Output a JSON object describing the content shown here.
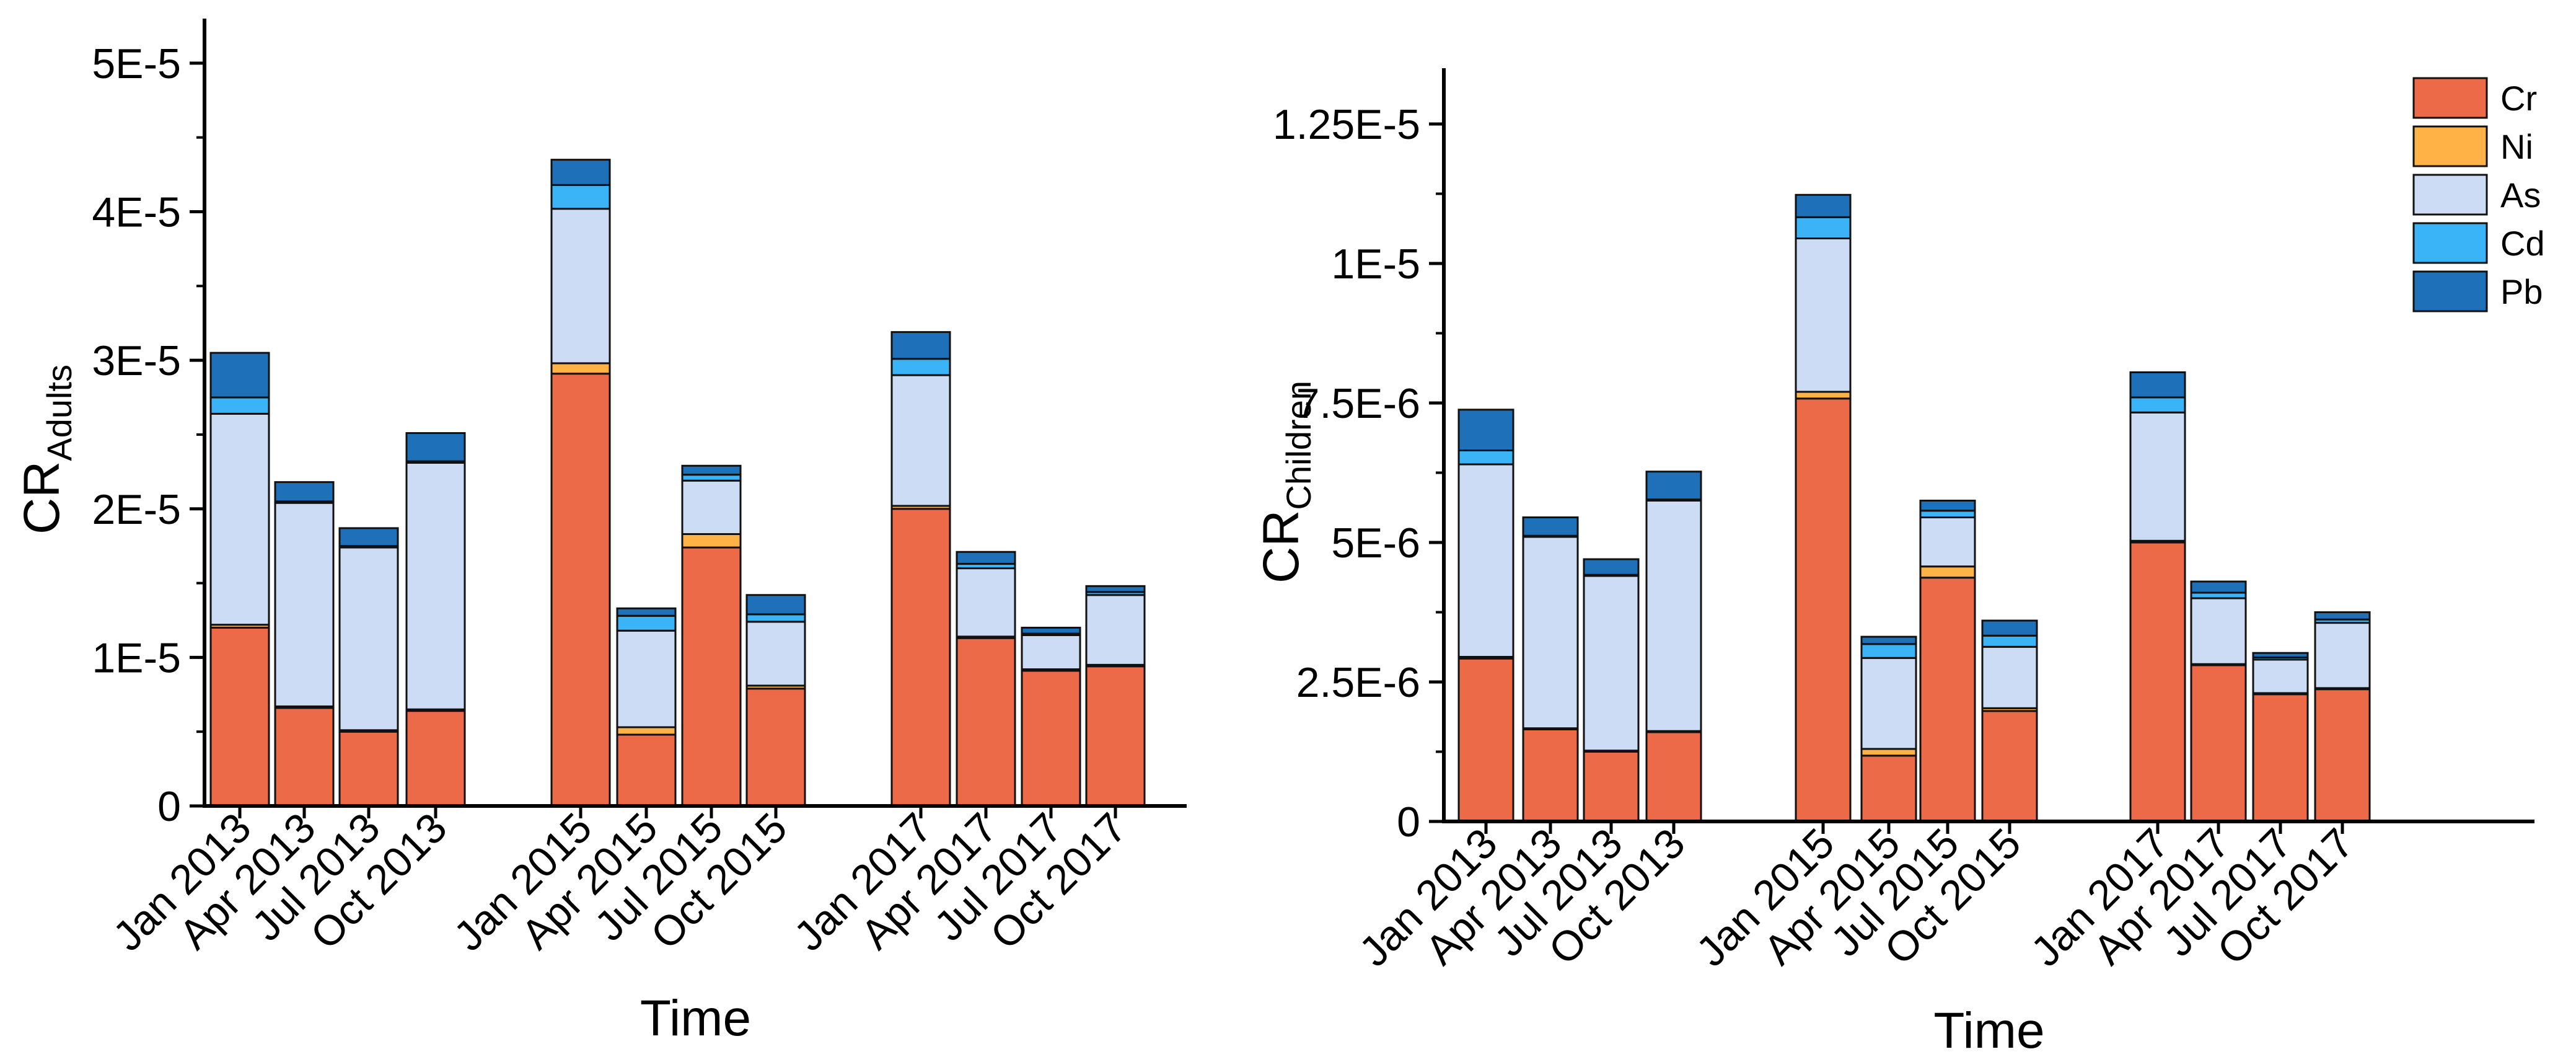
{
  "colors": {
    "Cr": "#ED6A48",
    "Ni": "#FFB347",
    "As": "#CCDCF4",
    "Cd": "#3BB3F7",
    "Pb": "#1E70B8"
  },
  "legend": [
    "Cr",
    "Ni",
    "As",
    "Cd",
    "Pb"
  ],
  "chart_data": [
    {
      "type": "bar",
      "stacked": true,
      "title": "",
      "xlabel": "Time",
      "ylabel": {
        "main": "CR",
        "sub": "Adults"
      },
      "ylim": [
        0,
        5.3e-05
      ],
      "yticks": [
        0,
        1e-05,
        2e-05,
        3e-05,
        4e-05,
        5e-05
      ],
      "ytick_labels": [
        "0",
        "1E-5",
        "2E-5",
        "3E-5",
        "4E-5",
        "5E-5"
      ],
      "categories": [
        "Jan 2013",
        "Apr 2013",
        "Jul 2013",
        "Oct 2013",
        "Jan 2015",
        "Apr 2015",
        "Jul 2015",
        "Oct 2015",
        "Jan 2017",
        "Apr 2017",
        "Jul 2017",
        "Oct 2017"
      ],
      "series": [
        {
          "name": "Cr",
          "values": [
            1.2e-05,
            6.6e-06,
            5e-06,
            6.4e-06,
            2.91e-05,
            4.8e-06,
            1.74e-05,
            7.9e-06,
            2e-05,
            1.13e-05,
            9.1e-06,
            9.4e-06
          ]
        },
        {
          "name": "Ni",
          "values": [
            2e-07,
            1e-07,
            1e-07,
            1e-07,
            7e-07,
            5e-07,
            9e-07,
            2e-07,
            2e-07,
            1e-07,
            1e-07,
            1e-07
          ]
        },
        {
          "name": "As",
          "values": [
            1.42e-05,
            1.37e-05,
            1.23e-05,
            1.66e-05,
            1.04e-05,
            6.5e-06,
            3.6e-06,
            4.3e-06,
            8.8e-06,
            4.6e-06,
            2.3e-06,
            4.7e-06
          ]
        },
        {
          "name": "Cd",
          "values": [
            1.1e-06,
            1e-07,
            1e-07,
            1e-07,
            1.6e-06,
            1e-06,
            4e-07,
            5e-07,
            1.1e-06,
            3e-07,
            1e-07,
            2e-07
          ]
        },
        {
          "name": "Pb",
          "values": [
            3e-06,
            1.3e-06,
            1.2e-06,
            1.9e-06,
            1.7e-06,
            5e-07,
            6e-07,
            1.3e-06,
            1.8e-06,
            8e-07,
            4e-07,
            4e-07
          ]
        }
      ]
    },
    {
      "type": "bar",
      "stacked": true,
      "title": "",
      "xlabel": "Time",
      "ylabel": {
        "main": "CR",
        "sub": "Children"
      },
      "ylim": [
        0,
        1.35e-05
      ],
      "yticks": [
        0,
        2.5e-06,
        5e-06,
        7.5e-06,
        1e-05,
        1.25e-05
      ],
      "ytick_labels": [
        "0",
        "2.5E-6",
        "5E-6",
        "7.5E-6",
        "1E-5",
        "1.25E-5"
      ],
      "categories": [
        "Jan 2013",
        "Apr 2013",
        "Jul 2013",
        "Oct 2013",
        "Jan 2015",
        "Apr 2015",
        "Jul 2015",
        "Oct 2015",
        "Jan 2017",
        "Apr 2017",
        "Jul 2017",
        "Oct 2017"
      ],
      "series": [
        {
          "name": "Cr",
          "values": [
            2.92e-06,
            1.65e-06,
            1.25e-06,
            1.6e-06,
            7.58e-06,
            1.18e-06,
            4.37e-06,
            1.98e-06,
            5e-06,
            2.8e-06,
            2.28e-06,
            2.37e-06
          ]
        },
        {
          "name": "Ni",
          "values": [
            3e-08,
            2e-08,
            2e-08,
            2e-08,
            1.2e-07,
            1.2e-07,
            2e-07,
            5e-08,
            3e-08,
            2e-08,
            2e-08,
            2e-08
          ]
        },
        {
          "name": "As",
          "values": [
            3.45e-06,
            3.43e-06,
            3.13e-06,
            4.13e-06,
            2.75e-06,
            1.63e-06,
            8.8e-07,
            1.1e-06,
            2.3e-06,
            1.18e-06,
            6e-07,
            1.17e-06
          ]
        },
        {
          "name": "Cd",
          "values": [
            2.5e-07,
            2e-08,
            2e-08,
            2e-08,
            3.8e-07,
            2.5e-07,
            1.2e-07,
            2e-07,
            2.7e-07,
            1e-07,
            4e-08,
            6e-08
          ]
        },
        {
          "name": "Pb",
          "values": [
            7.3e-07,
            3.3e-07,
            2.8e-07,
            5e-07,
            4e-07,
            1.3e-07,
            1.8e-07,
            2.7e-07,
            4.5e-07,
            2e-07,
            8e-08,
            1.3e-07
          ]
        }
      ]
    }
  ]
}
